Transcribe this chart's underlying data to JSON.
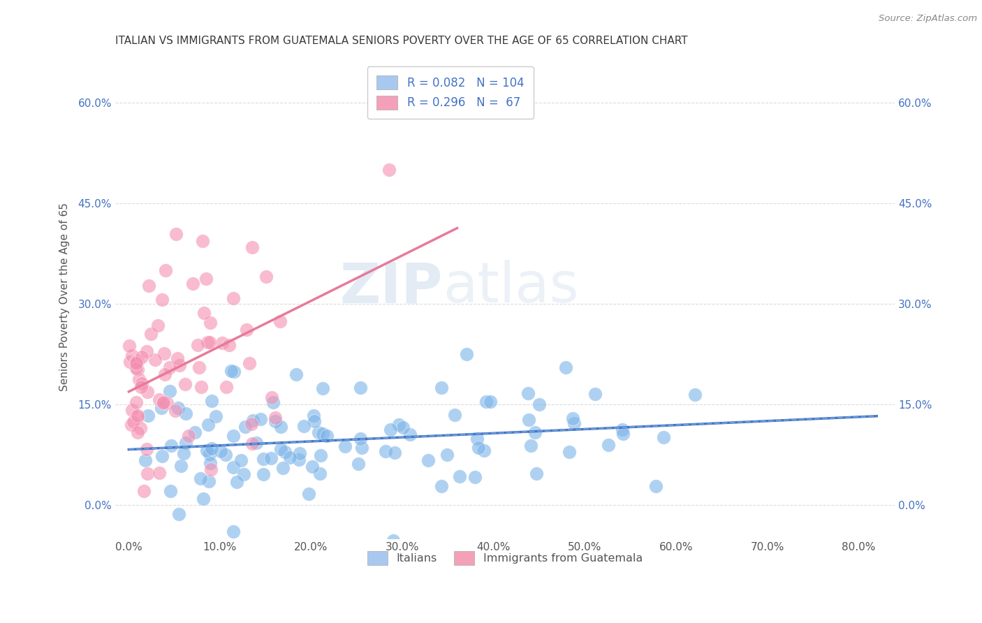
{
  "title": "ITALIAN VS IMMIGRANTS FROM GUATEMALA SENIORS POVERTY OVER THE AGE OF 65 CORRELATION CHART",
  "source_text": "Source: ZipAtlas.com",
  "ylabel": "Seniors Poverty Over the Age of 65",
  "ytick_labels": [
    "0.0%",
    "15.0%",
    "30.0%",
    "45.0%",
    "60.0%"
  ],
  "ytick_values": [
    0.0,
    0.15,
    0.3,
    0.45,
    0.6
  ],
  "xtick_labels": [
    "0.0%",
    "10.0%",
    "20.0%",
    "30.0%",
    "40.0%",
    "50.0%",
    "60.0%",
    "70.0%",
    "80.0%"
  ],
  "xtick_values": [
    0.0,
    0.1,
    0.2,
    0.3,
    0.4,
    0.5,
    0.6,
    0.7,
    0.8
  ],
  "xlim": [
    -0.015,
    0.84
  ],
  "ylim": [
    -0.05,
    0.67
  ],
  "italian_R": 0.082,
  "italian_N": 104,
  "guatemala_R": 0.296,
  "guatemala_N": 67,
  "watermark_part1": "ZIP",
  "watermark_part2": "atlas",
  "title_color": "#3a3a3a",
  "axis_label_color": "#4472c4",
  "scatter_color_italian": "#7ab3e8",
  "scatter_color_guatemala": "#f48fb1",
  "trendline_color_italian": "#4472c4",
  "trendline_color_guatemala": "#e87a9a",
  "background_color": "#ffffff",
  "grid_color": "#cccccc",
  "legend_color_italian": "#a8c8f0",
  "legend_color_guatemala": "#f4a0b8"
}
